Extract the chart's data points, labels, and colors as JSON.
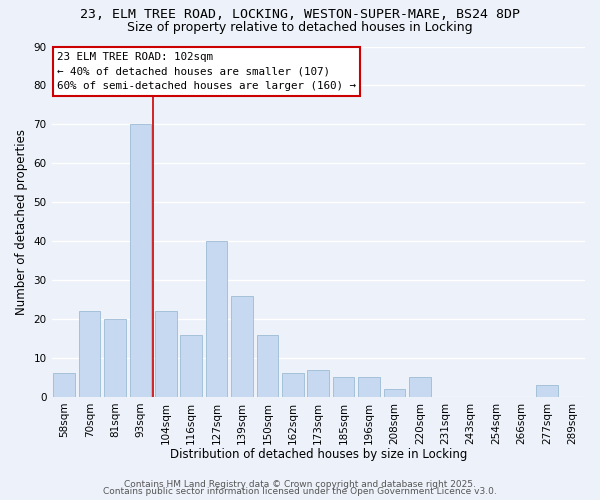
{
  "title": "23, ELM TREE ROAD, LOCKING, WESTON-SUPER-MARE, BS24 8DP",
  "subtitle": "Size of property relative to detached houses in Locking",
  "xlabel": "Distribution of detached houses by size in Locking",
  "ylabel": "Number of detached properties",
  "bar_labels": [
    "58sqm",
    "70sqm",
    "81sqm",
    "93sqm",
    "104sqm",
    "116sqm",
    "127sqm",
    "139sqm",
    "150sqm",
    "162sqm",
    "173sqm",
    "185sqm",
    "196sqm",
    "208sqm",
    "220sqm",
    "231sqm",
    "243sqm",
    "254sqm",
    "266sqm",
    "277sqm",
    "289sqm"
  ],
  "bar_values": [
    6,
    22,
    20,
    70,
    22,
    16,
    40,
    26,
    16,
    6,
    7,
    5,
    5,
    2,
    5,
    0,
    0,
    0,
    0,
    3,
    0
  ],
  "bar_color": "#c6d9f1",
  "bar_edge_color": "#9dbcd4",
  "vline_x": 3.5,
  "vline_color": "#cc0000",
  "ylim": [
    0,
    90
  ],
  "yticks": [
    0,
    10,
    20,
    30,
    40,
    50,
    60,
    70,
    80,
    90
  ],
  "annotation_text": "23 ELM TREE ROAD: 102sqm\n← 40% of detached houses are smaller (107)\n60% of semi-detached houses are larger (160) →",
  "footer_line1": "Contains HM Land Registry data © Crown copyright and database right 2025.",
  "footer_line2": "Contains public sector information licensed under the Open Government Licence v3.0.",
  "background_color": "#edf2fa",
  "grid_color": "#ffffff",
  "title_fontsize": 9.5,
  "subtitle_fontsize": 9,
  "axis_fontsize": 8.5,
  "tick_fontsize": 7.5,
  "ann_fontsize": 7.8,
  "footer_fontsize": 6.5
}
